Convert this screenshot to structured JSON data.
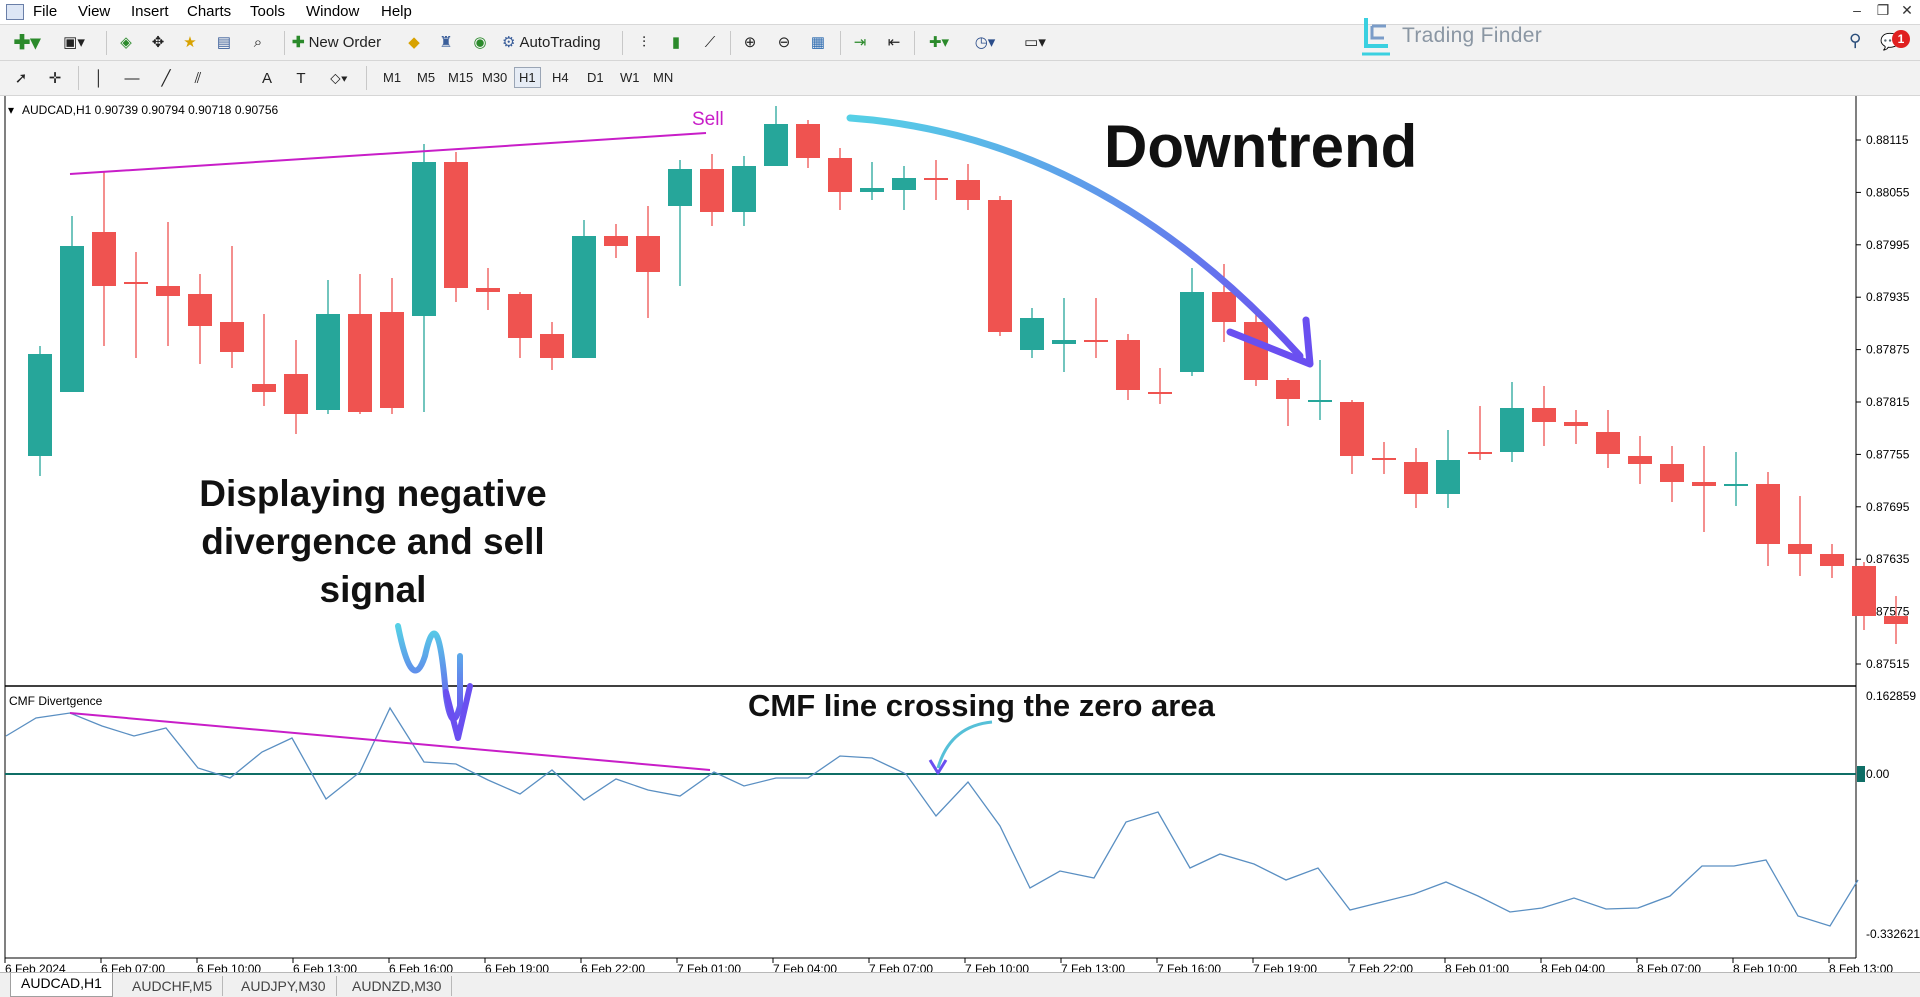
{
  "menu": [
    "File",
    "View",
    "Insert",
    "Charts",
    "Tools",
    "Window",
    "Help"
  ],
  "toolbar": {
    "new_order_label": "New Order",
    "autotrading_label": "AutoTrading",
    "timeframes": [
      "M1",
      "M5",
      "M15",
      "M30",
      "H1",
      "H4",
      "D1",
      "W1",
      "MN"
    ],
    "active_timeframe": "H1"
  },
  "brand": {
    "name": "Trading Finder"
  },
  "notifications": {
    "count": "1"
  },
  "chart": {
    "symbol_info": "AUDCAD,H1  0.90739 0.90794 0.90718 0.90756",
    "price_ticks": [
      "0.88115",
      "0.88055",
      "0.87995",
      "0.87935",
      "0.87875",
      "0.87815",
      "0.87755",
      "0.87695",
      "0.87635",
      "0.87575",
      "0.87515"
    ],
    "indicator_name": "CMF Divertgence",
    "indicator_ticks": [
      "0.162859",
      "0.00",
      "-0.332621"
    ],
    "time_ticks": [
      "6 Feb 2024",
      "6 Feb 07:00",
      "6 Feb 10:00",
      "6 Feb 13:00",
      "6 Feb 16:00",
      "6 Feb 19:00",
      "6 Feb 22:00",
      "7 Feb 01:00",
      "7 Feb 04:00",
      "7 Feb 07:00",
      "7 Feb 10:00",
      "7 Feb 13:00",
      "7 Feb 16:00",
      "7 Feb 19:00",
      "7 Feb 22:00",
      "8 Feb 01:00",
      "8 Feb 04:00",
      "8 Feb 07:00",
      "8 Feb 10:00",
      "8 Feb 13:00"
    ],
    "sell_label": "Sell",
    "colors": {
      "bull": "#26a69a",
      "bear": "#ef5350",
      "divergence": "#c81ec8",
      "cmf_line": "#5a8fc2",
      "zero_line": "#0f6e66",
      "arrow": "#5ec8e0"
    }
  },
  "annotations": {
    "downtrend": "Downtrend",
    "divergence": "Displaying negative divergence and sell signal",
    "cmf_cross": "CMF line crossing the zero area"
  },
  "tabs": [
    "AUDCAD,H1",
    "AUDCHF,M5",
    "AUDJPY,M30",
    "AUDNZD,M30"
  ],
  "active_tab": "AUDCAD,H1"
}
